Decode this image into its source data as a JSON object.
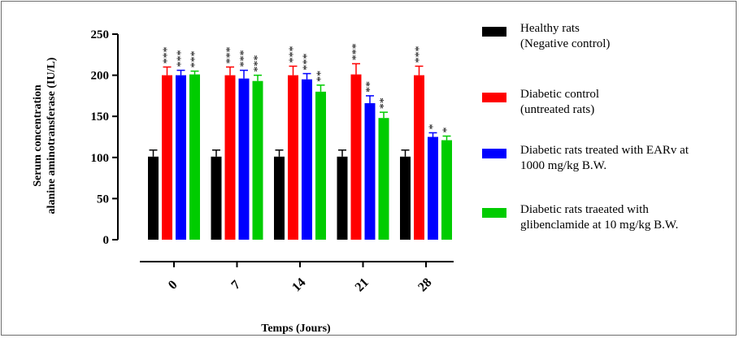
{
  "chart_data": {
    "type": "bar",
    "xlabel": "Temps (Jours)",
    "ylabel_line1": "Serum concentration",
    "ylabel_line2": "alanine aminotransferase (IU/L)",
    "ylim": [
      0,
      250
    ],
    "yticks": [
      "0",
      "50",
      "100",
      "150",
      "200",
      "250"
    ],
    "categories": [
      "0",
      "7",
      "14",
      "21",
      "28"
    ],
    "series": [
      {
        "legend_lines": [
          "Healthy rats",
          "(Negative control)"
        ],
        "color": "#000000",
        "values": [
          101,
          101,
          101,
          101,
          101
        ],
        "errors": [
          8,
          8,
          8,
          8,
          8
        ],
        "sig": [
          "",
          "",
          "",
          "",
          ""
        ]
      },
      {
        "legend_lines": [
          "Diabetic control",
          "(untreated rats)"
        ],
        "color": "#ff0000",
        "values": [
          200,
          200,
          200,
          201,
          200
        ],
        "errors": [
          10,
          10,
          11,
          13,
          11
        ],
        "sig": [
          "***",
          "***",
          "***",
          "***",
          "***"
        ]
      },
      {
        "legend_lines": [
          "Diabetic rats treated with EARv at",
          "1000 mg/kg B.W."
        ],
        "color": "#0000ff",
        "values": [
          200,
          196,
          195,
          166,
          125
        ],
        "errors": [
          6,
          10,
          7,
          9,
          5
        ],
        "sig": [
          "***",
          "***",
          "***",
          "**",
          "*"
        ]
      },
      {
        "legend_lines": [
          "Diabetic rats traeated with",
          "glibenclamide at 10 mg/kg B.W."
        ],
        "color": "#00cc00",
        "values": [
          201,
          193,
          180,
          148,
          121
        ],
        "errors": [
          4,
          7,
          8,
          7,
          5
        ],
        "sig": [
          "***",
          "***",
          "**",
          "**",
          "*"
        ]
      }
    ]
  }
}
